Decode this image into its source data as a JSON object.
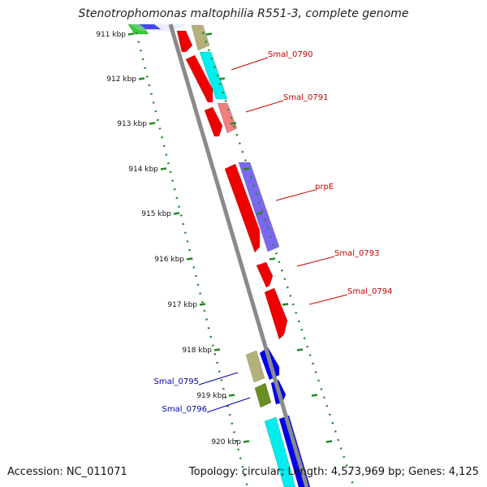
{
  "title": "Stenotrophomonas maltophilia R551-3, complete genome",
  "accession": "Accession: NC_011071",
  "summary": "Topology: circular; Length: 4,573,969 bp; Genes: 4,125",
  "colors": {
    "backbone": "#8a8a8a",
    "tick": "#228b22",
    "red_label": "#cc0000",
    "blue_label": "#0000aa"
  },
  "ticks": [
    {
      "kbp": 911,
      "label": "911 kbp"
    },
    {
      "kbp": 912,
      "label": "912 kbp"
    },
    {
      "kbp": 913,
      "label": "913 kbp"
    },
    {
      "kbp": 914,
      "label": "914 kbp"
    },
    {
      "kbp": 915,
      "label": "915 kbp"
    },
    {
      "kbp": 916,
      "label": "916 kbp"
    },
    {
      "kbp": 917,
      "label": "917 kbp"
    },
    {
      "kbp": 918,
      "label": "918 kbp"
    },
    {
      "kbp": 919,
      "label": "919 kbp"
    },
    {
      "kbp": 920,
      "label": "920 kbp"
    }
  ],
  "gene_labels": [
    {
      "text": "Smal_0790",
      "color": "#cc0000"
    },
    {
      "text": "Smal_0791",
      "color": "#cc0000"
    },
    {
      "text": "prpE",
      "color": "#cc0000"
    },
    {
      "text": "Smal_0793",
      "color": "#cc0000"
    },
    {
      "text": "Smal_0794",
      "color": "#cc0000"
    },
    {
      "text": "Smal_0795",
      "color": "#0000aa"
    },
    {
      "text": "Smal_0796",
      "color": "#0000aa"
    }
  ]
}
